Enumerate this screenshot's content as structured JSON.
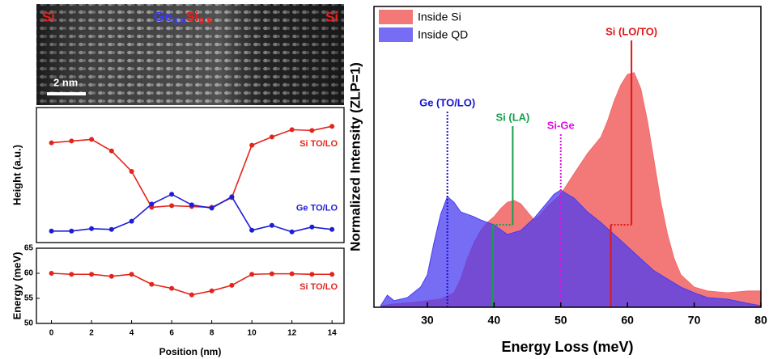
{
  "image": {
    "left_label": "Si",
    "center_label": [
      "Ge",
      "0.5",
      "Si",
      "0.5"
    ],
    "right_label": "Si",
    "scale_bar": "2 nm"
  },
  "chart_data": [
    {
      "type": "line",
      "ylabel": "Height (a.u.)",
      "x": [
        0,
        1,
        2,
        3,
        4,
        5,
        6,
        7,
        8,
        9,
        10,
        11,
        12,
        13,
        14
      ],
      "xlim": [
        -0.75,
        14.6
      ],
      "ylim": [
        0,
        10
      ],
      "series": [
        {
          "name": "Si TO/LO",
          "color": "#e3241b",
          "values": [
            7.39,
            7.52,
            7.64,
            6.79,
            5.27,
            2.61,
            2.73,
            2.67,
            2.61,
            3.33,
            7.21,
            7.82,
            8.36,
            8.3,
            8.61
          ]
        },
        {
          "name": "Ge TO/LO",
          "color": "#1d1dd6",
          "values": [
            0.85,
            0.85,
            1.03,
            0.97,
            1.58,
            2.85,
            3.58,
            2.79,
            2.55,
            3.39,
            0.91,
            1.27,
            0.79,
            1.15,
            0.97
          ]
        }
      ]
    },
    {
      "type": "line",
      "ylabel": "Energy (meV)",
      "xlabel": "Position (nm)",
      "x": [
        0,
        1,
        2,
        3,
        4,
        5,
        6,
        7,
        8,
        9,
        10,
        11,
        12,
        13,
        14
      ],
      "xlim": [
        -0.75,
        14.6
      ],
      "xticks": [
        0,
        2,
        4,
        6,
        8,
        10,
        12,
        14
      ],
      "ylim": [
        50,
        65
      ],
      "yticks": [
        50,
        55,
        60,
        65
      ],
      "series": [
        {
          "name": "Si TO/LO",
          "color": "#e3241b",
          "values": [
            60,
            59.8,
            59.8,
            59.4,
            59.8,
            57.8,
            57,
            55.7,
            56.5,
            57.6,
            59.8,
            59.9,
            59.9,
            59.8,
            59.8
          ]
        }
      ]
    },
    {
      "type": "area",
      "ylabel": "Normalized Intensity (ZLP=1)",
      "xlabel": "Energy Loss (meV)",
      "xlim": [
        22,
        80
      ],
      "xticks": [
        30,
        40,
        50,
        60,
        70,
        80
      ],
      "ylim": [
        0,
        1
      ],
      "legend": "upper left",
      "series": [
        {
          "name": "Inside Si",
          "color": "#f26a6a",
          "x": [
            23,
            25,
            28,
            30,
            32,
            34,
            35,
            36,
            37,
            38,
            39,
            40,
            41,
            42,
            43,
            44,
            45,
            46,
            47,
            48,
            49,
            50,
            52,
            54,
            56,
            57,
            58,
            59,
            60,
            61,
            62,
            63,
            64,
            65,
            66,
            67,
            68,
            70,
            72,
            75,
            78,
            80
          ],
          "values": [
            0.005,
            0.011,
            0.016,
            0.022,
            0.027,
            0.048,
            0.094,
            0.161,
            0.215,
            0.255,
            0.282,
            0.301,
            0.328,
            0.349,
            0.355,
            0.344,
            0.317,
            0.29,
            0.309,
            0.336,
            0.355,
            0.376,
            0.444,
            0.511,
            0.565,
            0.618,
            0.685,
            0.739,
            0.774,
            0.78,
            0.726,
            0.618,
            0.484,
            0.349,
            0.242,
            0.161,
            0.108,
            0.067,
            0.054,
            0.048,
            0.054,
            0.054
          ]
        },
        {
          "name": "Inside QD",
          "color": "#4a3cf0",
          "x": [
            23,
            24,
            25,
            27,
            29,
            30,
            31,
            32,
            33,
            34,
            35,
            36,
            37,
            38,
            39,
            40,
            42,
            44,
            46,
            48,
            49,
            50,
            51,
            52,
            54,
            56,
            58,
            60,
            62,
            64,
            66,
            68,
            70,
            72,
            75,
            78,
            80
          ],
          "values": [
            0.005,
            0.04,
            0.022,
            0.032,
            0.067,
            0.108,
            0.215,
            0.309,
            0.368,
            0.349,
            0.317,
            0.309,
            0.301,
            0.29,
            0.282,
            0.274,
            0.242,
            0.255,
            0.296,
            0.349,
            0.376,
            0.39,
            0.376,
            0.363,
            0.317,
            0.282,
            0.242,
            0.202,
            0.161,
            0.121,
            0.094,
            0.067,
            0.048,
            0.032,
            0.027,
            0.013,
            0.005
          ]
        }
      ],
      "annotations": [
        {
          "text": "Ge (TO/LO)",
          "color": "#1515d0",
          "x": [
            33
          ],
          "style": "dotted"
        },
        {
          "text": "Si (LA)",
          "color": "#17a04c",
          "x": [
            39.8,
            42.8
          ],
          "style": "solid"
        },
        {
          "text": "Si-Ge",
          "color": "#e010e0",
          "x": [
            50
          ],
          "style": "dotted"
        },
        {
          "text": "Si (LO/TO)",
          "color": "#e01818",
          "x": [
            57.5,
            60.6
          ],
          "style": "solid"
        }
      ]
    }
  ]
}
